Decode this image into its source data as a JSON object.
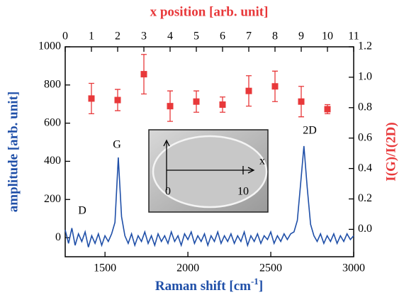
{
  "chart_data": [
    {
      "type": "line",
      "xlabel": {
        "text": "Raman shift [cm",
        "superscript": "-1",
        "suffix": "]"
      },
      "ylabel": "amplitude [arb. unit]",
      "color": "#1f4fa8",
      "xlim": [
        1260,
        3000
      ],
      "xticks": [
        1500,
        2000,
        2500,
        3000
      ],
      "ylim": [
        -100,
        1000
      ],
      "yticks": [
        0,
        200,
        400,
        600,
        800,
        1000
      ],
      "x": [
        1260,
        1280,
        1300,
        1320,
        1340,
        1360,
        1380,
        1400,
        1420,
        1440,
        1460,
        1480,
        1500,
        1520,
        1540,
        1560,
        1580,
        1600,
        1620,
        1640,
        1660,
        1680,
        1700,
        1720,
        1740,
        1760,
        1780,
        1800,
        1820,
        1840,
        1860,
        1880,
        1900,
        1920,
        1940,
        1960,
        1980,
        2000,
        2020,
        2040,
        2060,
        2080,
        2100,
        2120,
        2140,
        2160,
        2180,
        2200,
        2220,
        2240,
        2260,
        2280,
        2300,
        2320,
        2340,
        2360,
        2380,
        2400,
        2420,
        2440,
        2460,
        2480,
        2500,
        2520,
        2540,
        2560,
        2580,
        2600,
        2620,
        2640,
        2660,
        2680,
        2700,
        2720,
        2740,
        2760,
        2780,
        2800,
        2820,
        2840,
        2860,
        2880,
        2900,
        2920,
        2940,
        2960,
        2980,
        3000
      ],
      "values": [
        40,
        -30,
        50,
        -40,
        20,
        -20,
        30,
        -50,
        10,
        -30,
        20,
        -40,
        10,
        -20,
        20,
        80,
        420,
        110,
        10,
        -30,
        20,
        -40,
        10,
        -20,
        30,
        -30,
        10,
        -40,
        20,
        -20,
        10,
        -30,
        30,
        -20,
        10,
        -40,
        20,
        -10,
        30,
        -30,
        10,
        -20,
        20,
        -40,
        10,
        -20,
        30,
        -30,
        10,
        -20,
        20,
        -30,
        10,
        -20,
        30,
        -40,
        10,
        -20,
        20,
        -30,
        10,
        -10,
        30,
        -30,
        10,
        -20,
        20,
        -10,
        20,
        30,
        90,
        280,
        480,
        260,
        70,
        10,
        -20,
        20,
        -30,
        10,
        -20,
        20,
        -30,
        10,
        -20,
        20,
        -10,
        10
      ],
      "annotations": [
        "G",
        "2D",
        "D"
      ]
    },
    {
      "type": "scatter",
      "xlabel": "x position [arb. unit]",
      "ylabel": "I(G)/I(2D)",
      "color": "#e8383a",
      "xlim": [
        0,
        11
      ],
      "xticks": [
        0,
        1,
        2,
        3,
        4,
        5,
        6,
        7,
        8,
        9,
        10,
        11
      ],
      "y2lim": [
        -0.18,
        1.2
      ],
      "y2ticks": [
        {
          "value": 0.0,
          "label": "0.0"
        },
        0.2,
        0.4,
        0.6,
        0.8,
        {
          "value": 1.0,
          "label": "1.0"
        },
        1.2
      ],
      "x": [
        1,
        2,
        3,
        4,
        5,
        6,
        7,
        8,
        9,
        10
      ],
      "values": [
        0.86,
        0.85,
        1.02,
        0.81,
        0.84,
        0.82,
        0.91,
        0.94,
        0.84,
        0.79
      ],
      "errors": [
        0.1,
        0.07,
        0.13,
        0.1,
        0.07,
        0.05,
        0.1,
        0.1,
        0.1,
        0.03
      ]
    }
  ],
  "inset": {
    "labels": [
      "x",
      "0",
      "10"
    ]
  }
}
